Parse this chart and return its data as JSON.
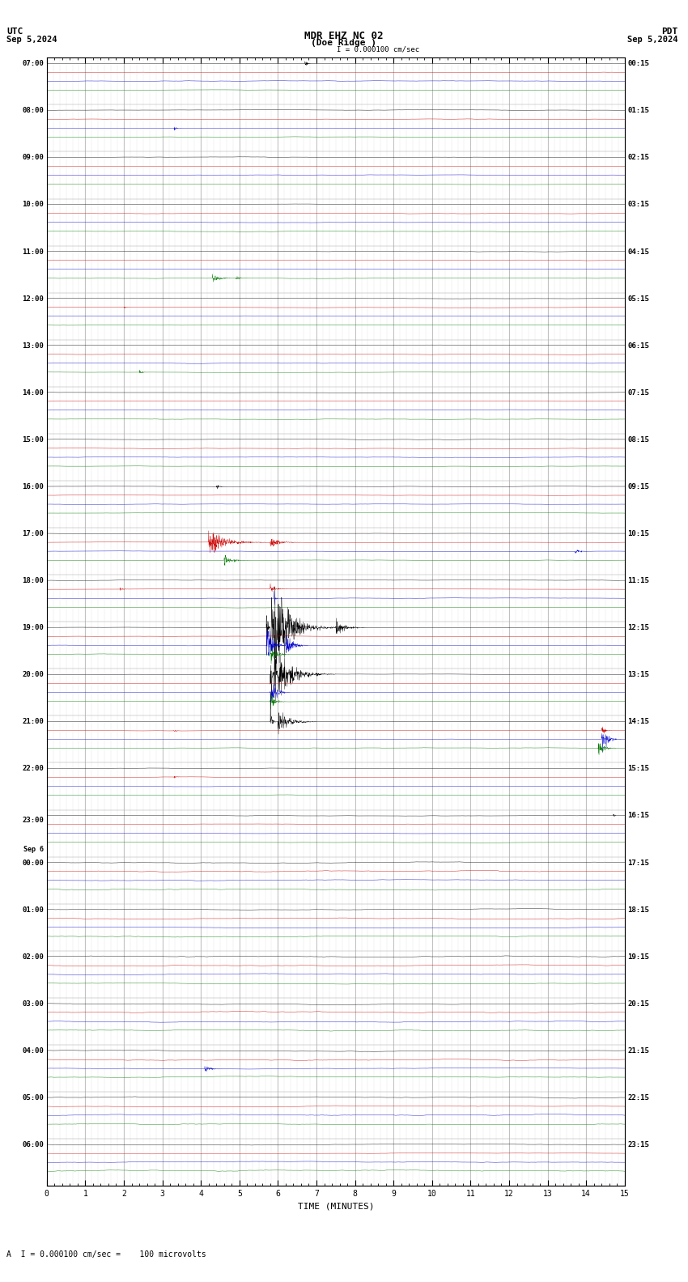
{
  "title_line1": "MDR EHZ NC 02",
  "title_line2": "(Doe Ridge )",
  "scale_label": "I = 0.000100 cm/sec",
  "utc_label": "UTC",
  "utc_date": "Sep 5,2024",
  "pdt_label": "PDT",
  "pdt_date": "Sep 5,2024",
  "bottom_label": "A  I = 0.000100 cm/sec =    100 microvolts",
  "xlabel": "TIME (MINUTES)",
  "bg_color": "#ffffff",
  "line_colors": [
    "#000000",
    "#cc0000",
    "#0000cc",
    "#007700"
  ],
  "num_rows": 24,
  "left_labels_utc": [
    "07:00",
    "08:00",
    "09:00",
    "10:00",
    "11:00",
    "12:00",
    "13:00",
    "14:00",
    "15:00",
    "16:00",
    "17:00",
    "18:00",
    "19:00",
    "20:00",
    "21:00",
    "22:00",
    "23:00",
    "00:00",
    "01:00",
    "02:00",
    "03:00",
    "04:00",
    "05:00",
    "06:00"
  ],
  "right_labels_pdt": [
    "00:15",
    "01:15",
    "02:15",
    "03:15",
    "04:15",
    "05:15",
    "06:15",
    "07:15",
    "08:15",
    "09:15",
    "10:15",
    "11:15",
    "12:15",
    "13:15",
    "14:15",
    "15:15",
    "16:15",
    "17:15",
    "18:15",
    "19:15",
    "20:15",
    "21:15",
    "22:15",
    "23:15"
  ],
  "sep6_row": 17,
  "noise_amplitude": 0.025,
  "noise_amplitude_sep6": 0.055,
  "grid_color": "#aaaaaa",
  "font_size_labels": 7,
  "font_size_title": 9,
  "lw": 0.3,
  "n_points": 2700,
  "t_max": 15.0,
  "ch_sub_offsets": [
    0.38,
    0.19,
    0.0,
    -0.19
  ],
  "ch_scale": 0.12
}
